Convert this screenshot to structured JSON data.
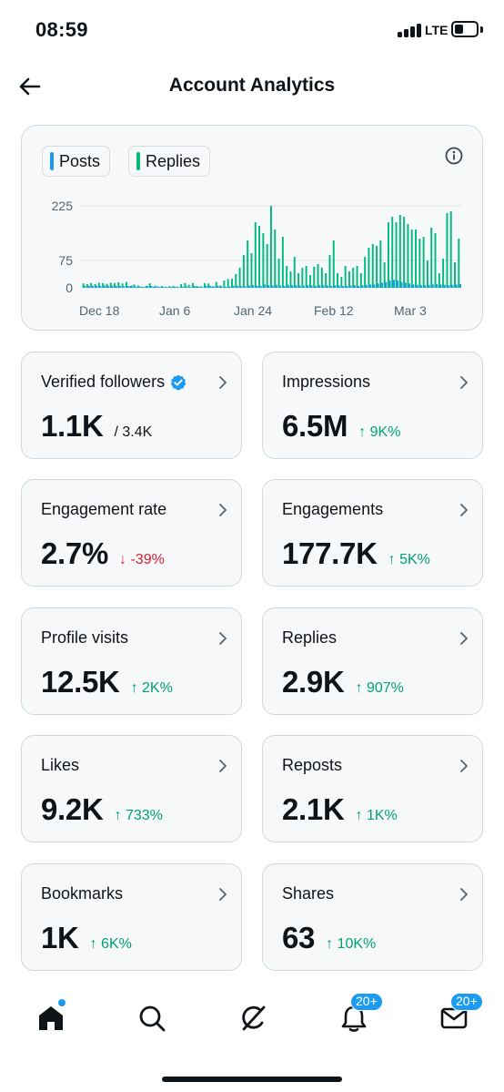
{
  "status_bar": {
    "time": "08:59",
    "network": "LTE"
  },
  "header": {
    "title": "Account Analytics"
  },
  "chart": {
    "legend": [
      {
        "label": "Posts",
        "color": "#1d9bf0"
      },
      {
        "label": "Replies",
        "color": "#00ba7c"
      }
    ]
  },
  "chart_data": {
    "type": "bar",
    "y_ticks": [
      "225",
      "75",
      "0"
    ],
    "x_ticks": [
      "Dec 18",
      "Jan 6",
      "Jan 24",
      "Feb 12",
      "Mar 3"
    ],
    "ylim": [
      0,
      225
    ],
    "series": [
      {
        "name": "Posts",
        "color": "#1d9bf0",
        "values": [
          5,
          6,
          5,
          6,
          5,
          6,
          5,
          6,
          5,
          5,
          4,
          5,
          6,
          3,
          4,
          2,
          5,
          5,
          6,
          2,
          3,
          2,
          3,
          3,
          2,
          3,
          4,
          2,
          5,
          3,
          2,
          5,
          5,
          4,
          5,
          4,
          3,
          4,
          6,
          5,
          5,
          4,
          6,
          7,
          6,
          5,
          9,
          7,
          6,
          8,
          6,
          5,
          8,
          7,
          7,
          6,
          6,
          7,
          6,
          5,
          7,
          7,
          6,
          5,
          7,
          6,
          5,
          5,
          6,
          7,
          5,
          7,
          8,
          9,
          9,
          12,
          14,
          16,
          20,
          22,
          20,
          16,
          14,
          12,
          9,
          8,
          7,
          7,
          8,
          9,
          10,
          9,
          8,
          7,
          8,
          9,
          10
        ]
      },
      {
        "name": "Replies",
        "color": "#00ba7c",
        "values": [
          12,
          10,
          13,
          10,
          14,
          13,
          11,
          14,
          13,
          15,
          12,
          16,
          5,
          9,
          6,
          3,
          5,
          12,
          3,
          4,
          5,
          3,
          4,
          5,
          3,
          10,
          13,
          8,
          13,
          5,
          4,
          13,
          12,
          4,
          16,
          6,
          20,
          24,
          25,
          38,
          55,
          90,
          130,
          95,
          180,
          170,
          150,
          120,
          225,
          160,
          80,
          140,
          60,
          45,
          85,
          40,
          55,
          60,
          35,
          58,
          65,
          55,
          40,
          90,
          130,
          40,
          30,
          60,
          45,
          55,
          60,
          40,
          85,
          110,
          120,
          115,
          130,
          70,
          180,
          195,
          180,
          200,
          195,
          175,
          160,
          160,
          135,
          140,
          75,
          165,
          150,
          40,
          80,
          205,
          210,
          70,
          135
        ]
      }
    ]
  },
  "metrics": [
    {
      "label": "Verified followers",
      "value": "1.1K",
      "sub": "/ 3.4K",
      "verified_icon": "verified-badge-icon"
    },
    {
      "label": "Impressions",
      "value": "6.5M",
      "change": "↑ 9K%",
      "direction": "up"
    },
    {
      "label": "Engagement rate",
      "value": "2.7%",
      "change": "↓ -39%",
      "direction": "down"
    },
    {
      "label": "Engagements",
      "value": "177.7K",
      "change": "↑ 5K%",
      "direction": "up"
    },
    {
      "label": "Profile visits",
      "value": "12.5K",
      "change": "↑ 2K%",
      "direction": "up"
    },
    {
      "label": "Replies",
      "value": "2.9K",
      "change": "↑ 907%",
      "direction": "up"
    },
    {
      "label": "Likes",
      "value": "9.2K",
      "change": "↑ 733%",
      "direction": "up"
    },
    {
      "label": "Reposts",
      "value": "2.1K",
      "change": "↑ 1K%",
      "direction": "up"
    },
    {
      "label": "Bookmarks",
      "value": "1K",
      "change": "↑ 6K%",
      "direction": "up"
    },
    {
      "label": "Shares",
      "value": "63",
      "change": "↑ 10K%",
      "direction": "up"
    }
  ],
  "bottom_nav": {
    "items": [
      "home-icon",
      "search-icon",
      "grok-icon",
      "notifications-icon",
      "messages-icon"
    ],
    "notifications_badge": "20+",
    "messages_badge": "20+"
  },
  "colors": {
    "accent": "#1d9bf0",
    "positive": "#00a36c",
    "negative": "#d4203a",
    "card_bg": "#f7f8f9",
    "card_border": "#cfd9de"
  }
}
